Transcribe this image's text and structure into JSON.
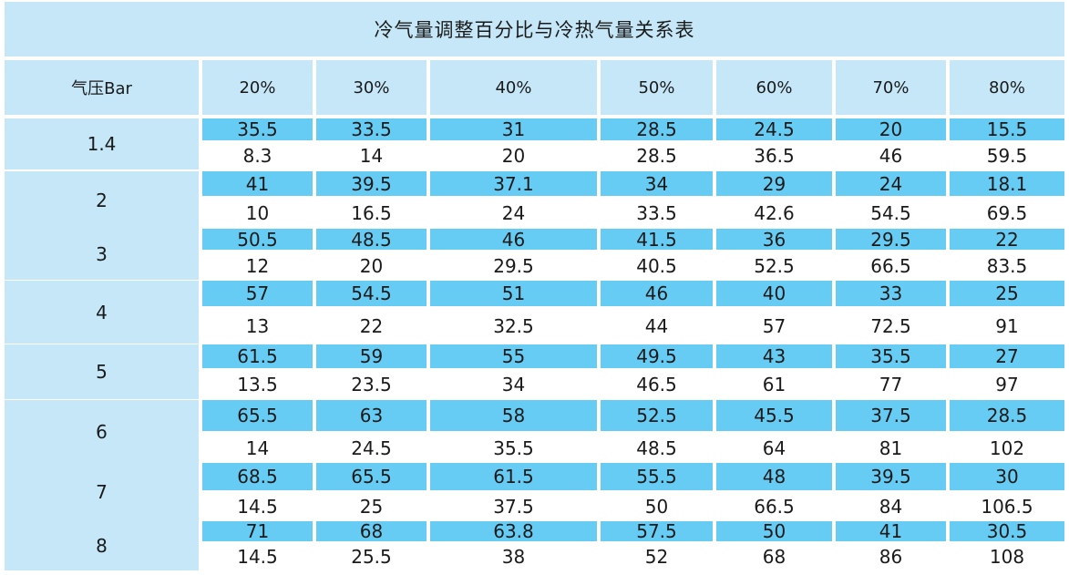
{
  "title": "冷气量调整百分比与冷热气量关系表",
  "header": {
    "pressure_label": "气压Bar",
    "percentages": [
      "20%",
      "30%",
      "40%",
      "50%",
      "60%",
      "70%",
      "80%"
    ]
  },
  "rows": [
    {
      "pressure": "1.4",
      "cold": [
        "35.5",
        "33.5",
        "31",
        "28.5",
        "24.5",
        "20",
        "15.5"
      ],
      "hot": [
        "8.3",
        "14",
        "20",
        "28.5",
        "36.5",
        "46",
        "59.5"
      ]
    },
    {
      "pressure": "2",
      "cold": [
        "41",
        "39.5",
        "37.1",
        "34",
        "29",
        "24",
        "18.1"
      ],
      "hot": [
        "10",
        "16.5",
        "24",
        "33.5",
        "42.6",
        "54.5",
        "69.5"
      ]
    },
    {
      "pressure": "3",
      "cold": [
        "50.5",
        "48.5",
        "46",
        "41.5",
        "36",
        "29.5",
        "22"
      ],
      "hot": [
        "12",
        "20",
        "29.5",
        "40.5",
        "52.5",
        "66.5",
        "83.5"
      ]
    },
    {
      "pressure": "4",
      "cold": [
        "57",
        "54.5",
        "51",
        "46",
        "40",
        "33",
        "25"
      ],
      "hot": [
        "13",
        "22",
        "32.5",
        "44",
        "57",
        "72.5",
        "91"
      ]
    },
    {
      "pressure": "5",
      "cold": [
        "61.5",
        "59",
        "55",
        "49.5",
        "43",
        "35.5",
        "27"
      ],
      "hot": [
        "13.5",
        "23.5",
        "34",
        "46.5",
        "61",
        "77",
        "97"
      ]
    },
    {
      "pressure": "6",
      "cold": [
        "65.5",
        "63",
        "58",
        "52.5",
        "45.5",
        "37.5",
        "28.5"
      ],
      "hot": [
        "14",
        "24.5",
        "35.5",
        "48.5",
        "64",
        "81",
        "102"
      ]
    },
    {
      "pressure": "7",
      "cold": [
        "68.5",
        "65.5",
        "61.5",
        "55.5",
        "48",
        "39.5",
        "30"
      ],
      "hot": [
        "14.5",
        "25",
        "37.5",
        "50",
        "66.5",
        "84",
        "106.5"
      ]
    },
    {
      "pressure": "8",
      "cold": [
        "71",
        "68",
        "63.8",
        "57.5",
        "50",
        "41",
        "30.5"
      ],
      "hot": [
        "14.5",
        "25.5",
        "38",
        "52",
        "68",
        "86",
        "108"
      ]
    }
  ],
  "colors": {
    "header_bg": "#c5e7f7",
    "cold_bg": "#66ccf4",
    "hot_bg": "#ffffff"
  }
}
